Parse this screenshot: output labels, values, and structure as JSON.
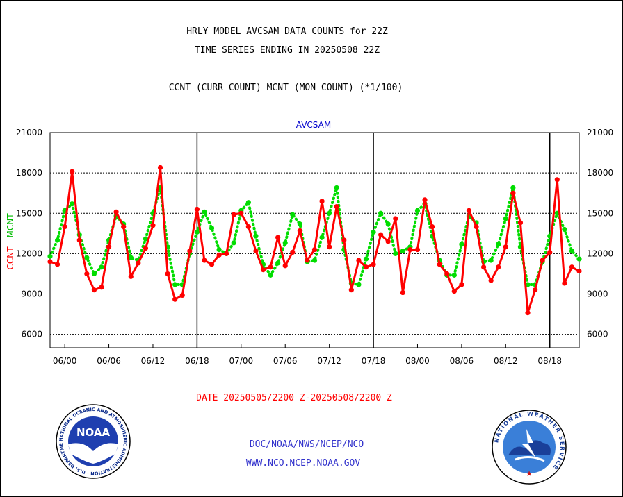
{
  "header": {
    "title_line1": "HRLY MODEL AVCSAM DATA COUNTS for 22Z",
    "title_line2": "TIME SERIES ENDING IN 20250508 22Z",
    "subtitle": "CCNT (CURR COUNT) MCNT (MON COUNT) (*1/100)"
  },
  "footer": {
    "date_range": "DATE 20250505/2200 Z-20250508/2200 Z",
    "org_line": "DOC/NOAA/NWS/NCEP/NCO",
    "website": "WWW.NCO.NCEP.NOAA.GOV"
  },
  "logos": {
    "noaa_text": "NOAA",
    "noaa_ring": "NATIONAL OCEANIC AND ATMOSPHERIC ADMINISTRATION · U.S. DEPARTMENT OF COMMERCE",
    "nws_ring": "NATIONAL WEATHER SERVICE"
  },
  "colors": {
    "ccnt": "#ff0000",
    "mcnt": "#00dd00",
    "plot_title": "#0000cc",
    "footer_blue": "#3333cc",
    "date_red": "#ff0000"
  },
  "chart_data": {
    "type": "line",
    "title": "AVCSAM",
    "ylabel_ccnt": "CCNT",
    "ylabel_mcnt": "MCNT",
    "ylim": [
      5000,
      21000
    ],
    "yticks": [
      6000,
      9000,
      12000,
      15000,
      18000,
      21000
    ],
    "ytick_labels": [
      "6000",
      "9000",
      "12000",
      "15000",
      "18000",
      "21000"
    ],
    "xticks": [
      "06/00",
      "06/06",
      "06/12",
      "06/18",
      "07/00",
      "07/06",
      "07/12",
      "07/18",
      "08/00",
      "08/06",
      "08/12",
      "08/18"
    ],
    "xtick_positions_hours": [
      2,
      8,
      14,
      20,
      26,
      32,
      38,
      44,
      50,
      56,
      62,
      68
    ],
    "day_boundaries_hours": [
      20,
      44,
      68
    ],
    "grid": true,
    "series": [
      {
        "name": "CCNT",
        "style": "solid",
        "values": [
          11400,
          11200,
          14000,
          18100,
          13000,
          10500,
          9300,
          9500,
          12500,
          15100,
          14000,
          10300,
          11300,
          12400,
          14100,
          18400,
          10500,
          8600,
          8900,
          12200,
          15300,
          11500,
          11200,
          11900,
          12000,
          14900,
          15000,
          14000,
          12200,
          10800,
          11000,
          13200,
          11100,
          12100,
          13700,
          11500,
          12300,
          15900,
          12500,
          15500,
          13000,
          9300,
          11500,
          11000,
          11200,
          13400,
          12900,
          14600,
          9100,
          12300,
          12300,
          16000,
          14000,
          11200,
          10500,
          9200,
          9700,
          15200,
          14000,
          11000,
          10000,
          11000,
          12500,
          16500,
          14300,
          7600,
          9300,
          11500,
          12100,
          17500,
          9800,
          11000,
          10700
        ]
      },
      {
        "name": "MCNT",
        "style": "dotted",
        "values": [
          11800,
          13000,
          15200,
          15700,
          13400,
          11700,
          10500,
          11000,
          13000,
          14800,
          14200,
          11700,
          11500,
          13100,
          15000,
          16900,
          12500,
          9700,
          9700,
          12000,
          13600,
          15100,
          13900,
          12300,
          12000,
          12800,
          15200,
          15800,
          13300,
          11200,
          10400,
          11300,
          12800,
          14900,
          14200,
          11400,
          11500,
          13200,
          15000,
          16900,
          12300,
          9800,
          9700,
          11600,
          13600,
          15000,
          14200,
          12000,
          12200,
          12500,
          15200,
          15700,
          13300,
          11500,
          10400,
          10400,
          12700,
          14800,
          14300,
          11400,
          11500,
          12700,
          14600,
          16900,
          12500,
          9700,
          9700,
          11400,
          13300,
          15000,
          13800,
          12200,
          11600
        ]
      }
    ]
  }
}
